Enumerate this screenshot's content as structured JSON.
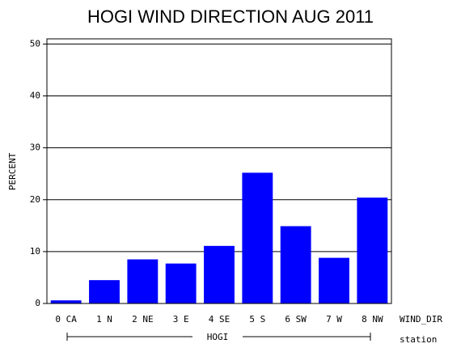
{
  "chart_data": {
    "type": "bar",
    "title": "HOGI WIND DIRECTION AUG 2011",
    "ylabel": "PERCENT",
    "xlabel": "WIND_DIR",
    "group_label": "HOGI",
    "group_axis_label": "station",
    "categories": [
      "0 CA",
      "1 N",
      "2 NE",
      "3 E",
      "4 SE",
      "5 S",
      "6 SW",
      "7 W",
      "8 NW"
    ],
    "values": [
      0.6,
      4.5,
      8.5,
      7.7,
      11.1,
      25.2,
      14.9,
      8.8,
      20.4
    ],
    "color": "#0000ff",
    "ylim": [
      0,
      51
    ],
    "yticks": [
      0,
      10,
      20,
      30,
      40,
      50
    ],
    "grid": true
  }
}
